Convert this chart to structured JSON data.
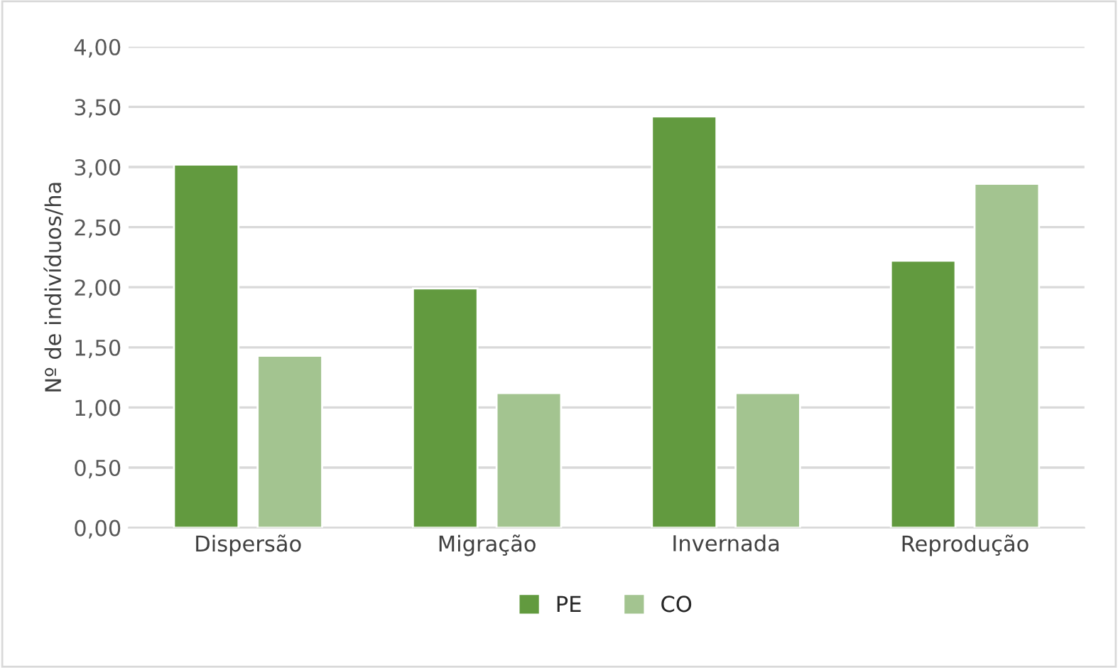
{
  "chart_data": {
    "type": "bar",
    "ylabel": "Nº de indivíduos/ha",
    "categories": [
      "Dispersão",
      "Migração",
      "Invernada",
      "Reprodução"
    ],
    "series": [
      {
        "name": "PE",
        "color": "#629a3f",
        "values": [
          3.02,
          1.99,
          3.42,
          2.22
        ]
      },
      {
        "name": "CO",
        "color": "#a3c490",
        "values": [
          1.43,
          1.12,
          1.12,
          2.86
        ]
      }
    ],
    "ylim": [
      0,
      4
    ],
    "yticks": [
      {
        "value": 0,
        "label": "0,00"
      },
      {
        "value": 0.5,
        "label": "0,50"
      },
      {
        "value": 1,
        "label": "1,00"
      },
      {
        "value": 1.5,
        "label": "1,50"
      },
      {
        "value": 2,
        "label": "2,00"
      },
      {
        "value": 2.5,
        "label": "2,50"
      },
      {
        "value": 3,
        "label": "3,00"
      },
      {
        "value": 3.5,
        "label": "3,50"
      },
      {
        "value": 4,
        "label": "4,00"
      }
    ],
    "grid": "y",
    "legend": "bottom"
  }
}
